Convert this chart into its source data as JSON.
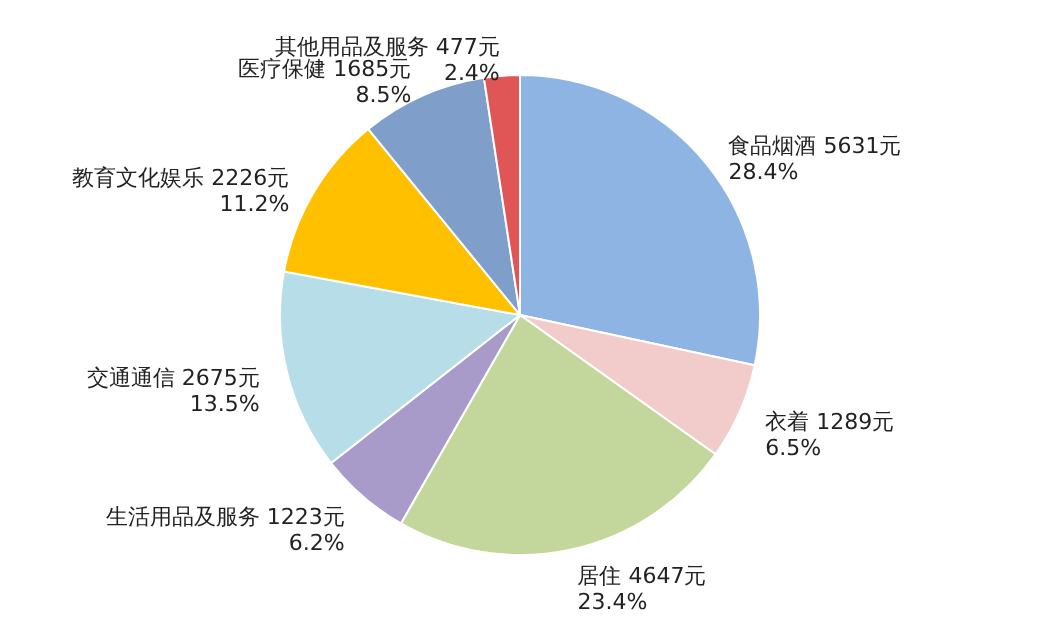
{
  "chart_data": {
    "type": "pie",
    "categories": [
      "食品烟酒",
      "衣着",
      "居住",
      "生活用品及服务",
      "交通通信",
      "教育文化娱乐",
      "医疗保健",
      "其他用品及服务"
    ],
    "values": [
      5631,
      1289,
      4647,
      1223,
      2675,
      2226,
      1685,
      477
    ],
    "value_labels": [
      "5631元\n28.4%",
      "1289元\n6.5%",
      "4647元\n23.4%",
      "1223元\n6.2%",
      "2675元\n13.5%",
      "2226元\n11.2%",
      "1685元\n8.5%",
      "477元\n2.4%"
    ],
    "colors": [
      "#8db4e2",
      "#f2cccb",
      "#c3d69b",
      "#a99bc9",
      "#b7dee8",
      "#ffc000",
      "#7f9ec9",
      "#e05555"
    ]
  }
}
